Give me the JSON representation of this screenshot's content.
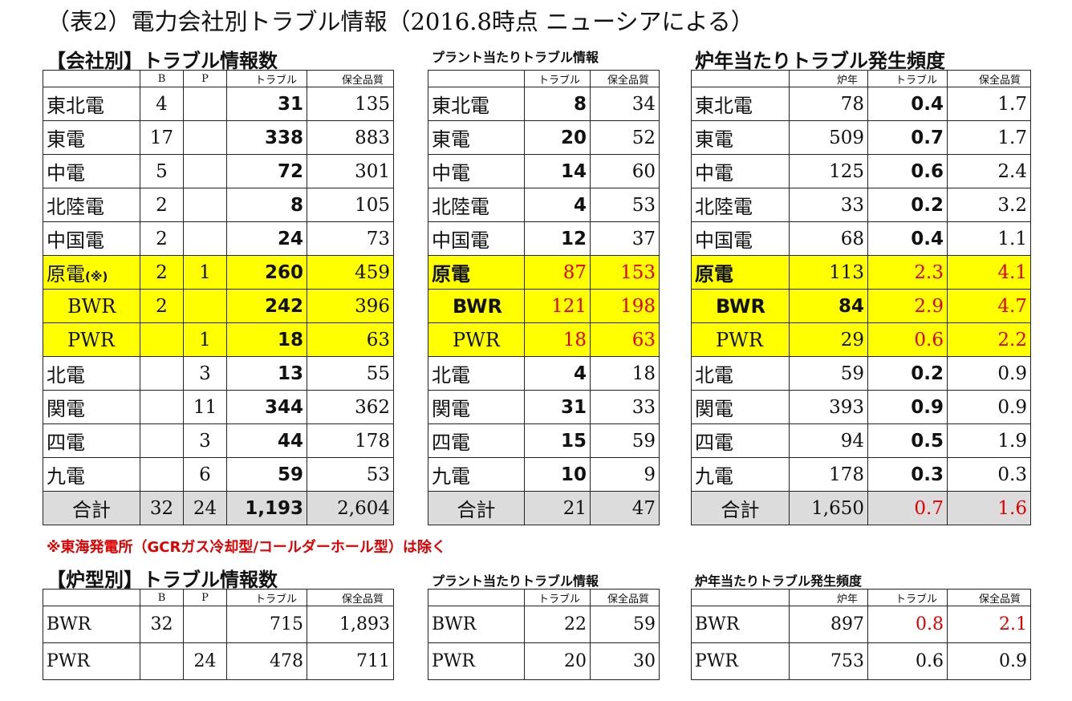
{
  "title": "（表2）電力会社別トラブル情報（2016.8時点 ニューシアによる）",
  "sec1": {
    "heading": "【会社別】トラブル情報数",
    "headers": [
      "",
      "B",
      "P",
      "トラブル",
      "保全品質"
    ],
    "rows": [
      {
        "name": "東北電",
        "b": "4",
        "p": "",
        "t": "31",
        "q": "135"
      },
      {
        "name": "東電",
        "b": "17",
        "p": "",
        "t": "338",
        "q": "883"
      },
      {
        "name": "中電",
        "b": "5",
        "p": "",
        "t": "72",
        "q": "301"
      },
      {
        "name": "北陸電",
        "b": "2",
        "p": "",
        "t": "8",
        "q": "105"
      },
      {
        "name": "中国電",
        "b": "2",
        "p": "",
        "t": "24",
        "q": "73"
      },
      {
        "name": "原電",
        "mark": "(※)",
        "b": "2",
        "p": "1",
        "t": "260",
        "q": "459"
      },
      {
        "name": "BWR",
        "b": "2",
        "p": "",
        "t": "242",
        "q": "396"
      },
      {
        "name": "PWR",
        "b": "",
        "p": "1",
        "t": "18",
        "q": "63"
      },
      {
        "name": "北電",
        "b": "",
        "p": "3",
        "t": "13",
        "q": "55"
      },
      {
        "name": "関電",
        "b": "",
        "p": "11",
        "t": "344",
        "q": "362"
      },
      {
        "name": "四電",
        "b": "",
        "p": "3",
        "t": "44",
        "q": "178"
      },
      {
        "name": "九電",
        "b": "",
        "p": "6",
        "t": "59",
        "q": "53"
      }
    ],
    "total": {
      "name": "合計",
      "b": "32",
      "p": "24",
      "t": "1,193",
      "q": "2,604"
    }
  },
  "sec2": {
    "heading": "プラント当たりトラブル情報",
    "headers": [
      "",
      "トラブル",
      "保全品質"
    ],
    "rows": [
      {
        "name": "東北電",
        "t": "8",
        "q": "34"
      },
      {
        "name": "東電",
        "t": "20",
        "q": "52"
      },
      {
        "name": "中電",
        "t": "14",
        "q": "60"
      },
      {
        "name": "北陸電",
        "t": "4",
        "q": "53"
      },
      {
        "name": "中国電",
        "t": "12",
        "q": "37"
      },
      {
        "name": "原電",
        "t": "87",
        "q": "153"
      },
      {
        "name": "BWR",
        "t": "121",
        "q": "198"
      },
      {
        "name": "PWR",
        "t": "18",
        "q": "63"
      },
      {
        "name": "北電",
        "t": "4",
        "q": "18"
      },
      {
        "name": "関電",
        "t": "31",
        "q": "33"
      },
      {
        "name": "四電",
        "t": "15",
        "q": "59"
      },
      {
        "name": "九電",
        "t": "10",
        "q": "9"
      }
    ],
    "total": {
      "name": "合計",
      "t": "21",
      "q": "47"
    }
  },
  "sec3": {
    "heading": "炉年当たりトラブル発生頻度",
    "headers": [
      "",
      "炉年",
      "トラブル",
      "保全品質"
    ],
    "rows": [
      {
        "name": "東北電",
        "y": "78",
        "t": "0.4",
        "q": "1.7"
      },
      {
        "name": "東電",
        "y": "509",
        "t": "0.7",
        "q": "1.7"
      },
      {
        "name": "中電",
        "y": "125",
        "t": "0.6",
        "q": "2.4"
      },
      {
        "name": "北陸電",
        "y": "33",
        "t": "0.2",
        "q": "3.2"
      },
      {
        "name": "中国電",
        "y": "68",
        "t": "0.4",
        "q": "1.1"
      },
      {
        "name": "原電",
        "y": "113",
        "t": "2.3",
        "q": "4.1"
      },
      {
        "name": "BWR",
        "y": "84",
        "t": "2.9",
        "q": "4.7"
      },
      {
        "name": "PWR",
        "y": "29",
        "t": "0.6",
        "q": "2.2"
      },
      {
        "name": "北電",
        "y": "59",
        "t": "0.2",
        "q": "0.9"
      },
      {
        "name": "関電",
        "y": "393",
        "t": "0.9",
        "q": "0.9"
      },
      {
        "name": "四電",
        "y": "94",
        "t": "0.5",
        "q": "1.9"
      },
      {
        "name": "九電",
        "y": "178",
        "t": "0.3",
        "q": "0.3"
      }
    ],
    "total": {
      "name": "合計",
      "y": "1,650",
      "t": "0.7",
      "q": "1.6"
    }
  },
  "note": "※東海発電所（GCRガス冷却型/コールダーホール型）は除く",
  "sec4": {
    "heading": "【炉型別】トラブル情報数",
    "headers": [
      "",
      "B",
      "P",
      "トラブル",
      "保全品質"
    ],
    "rows": [
      {
        "name": "BWR",
        "b": "32",
        "p": "",
        "t": "715",
        "q": "1,893"
      },
      {
        "name": "PWR",
        "b": "",
        "p": "24",
        "t": "478",
        "q": "711"
      }
    ]
  },
  "sec5": {
    "heading": "プラント当たりトラブル情報",
    "headers": [
      "",
      "トラブル",
      "保全品質"
    ],
    "rows": [
      {
        "name": "BWR",
        "t": "22",
        "q": "59"
      },
      {
        "name": "PWR",
        "t": "20",
        "q": "30"
      }
    ]
  },
  "sec6": {
    "heading": "炉年当たりトラブル発生頻度",
    "headers": [
      "",
      "炉年",
      "トラブル",
      "保全品質"
    ],
    "rows": [
      {
        "name": "BWR",
        "y": "897",
        "t": "0.8",
        "q": "2.1"
      },
      {
        "name": "PWR",
        "y": "753",
        "t": "0.6",
        "q": "0.9"
      }
    ]
  },
  "colors": {
    "highlight": "#ffff00",
    "total": "#dcdcdc",
    "red": "#e00000"
  }
}
